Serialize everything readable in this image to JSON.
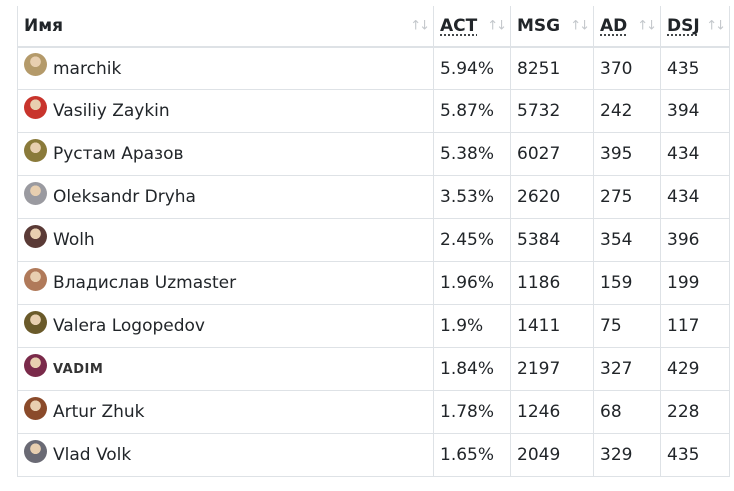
{
  "columns": [
    {
      "key": "name",
      "label": "Имя",
      "underline": false
    },
    {
      "key": "act",
      "label": "ACT",
      "underline": true
    },
    {
      "key": "msg",
      "label": "MSG",
      "underline": false
    },
    {
      "key": "ad",
      "label": "AD",
      "underline": true
    },
    {
      "key": "dsj",
      "label": "DSJ",
      "underline": true
    }
  ],
  "sort_icon": "↑↓",
  "rows": [
    {
      "name": "marchik",
      "act": "5.94%",
      "msg": "8251",
      "ad": "370",
      "dsj": "435",
      "avatar_color": "#b49a6a"
    },
    {
      "name": "Vasiliy Zaykin",
      "act": "5.87%",
      "msg": "5732",
      "ad": "242",
      "dsj": "394",
      "avatar_color": "#c8342c"
    },
    {
      "name": "Рустам Аразов",
      "act": "5.38%",
      "msg": "6027",
      "ad": "395",
      "dsj": "434",
      "avatar_color": "#8a7a3a"
    },
    {
      "name": "Oleksandr Dryha",
      "act": "3.53%",
      "msg": "2620",
      "ad": "275",
      "dsj": "434",
      "avatar_color": "#9a9aa0"
    },
    {
      "name": "Wolh",
      "act": "2.45%",
      "msg": "5384",
      "ad": "354",
      "dsj": "396",
      "avatar_color": "#5a3a36"
    },
    {
      "name": "Владислав Uzmaster",
      "act": "1.96%",
      "msg": "1186",
      "ad": "159",
      "dsj": "199",
      "avatar_color": "#b07a5a"
    },
    {
      "name": "Valera Logopedov",
      "act": "1.9%",
      "msg": "1411",
      "ad": "75",
      "dsj": "117",
      "avatar_color": "#6a5a2a"
    },
    {
      "name": "VADIM",
      "act": "1.84%",
      "msg": "2197",
      "ad": "327",
      "dsj": "429",
      "avatar_color": "#7a2a4a",
      "small": true
    },
    {
      "name": "Artur Zhuk",
      "act": "1.78%",
      "msg": "1246",
      "ad": "68",
      "dsj": "228",
      "avatar_color": "#8a4a2a"
    },
    {
      "name": "Vlad Volk",
      "act": "1.65%",
      "msg": "2049",
      "ad": "329",
      "dsj": "435",
      "avatar_color": "#6a6a74"
    }
  ]
}
